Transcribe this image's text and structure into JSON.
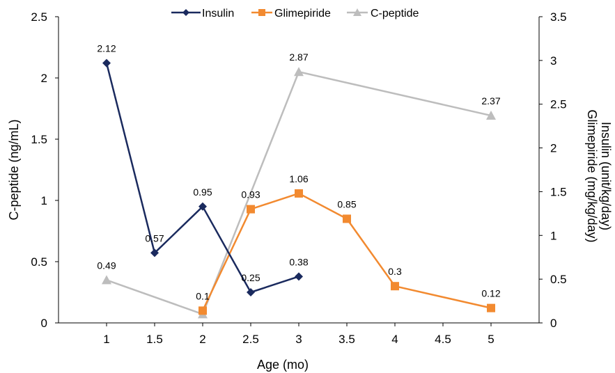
{
  "chart_data": {
    "type": "line",
    "xlabel": "Age (mo)",
    "ylabel_left": "C-peptide (ng/mL)",
    "ylabel_right_lines": [
      "Insulin (unit/kg/day)",
      "Glimepiride (mg/kg/day)"
    ],
    "xlim": [
      0.5,
      5.5
    ],
    "x_ticks": [
      1,
      1.5,
      2,
      2.5,
      3,
      3.5,
      4,
      4.5,
      5
    ],
    "x_tick_labels": [
      "1",
      "1.5",
      "2",
      "2.5",
      "3",
      "3.5",
      "4",
      "4.5",
      "5"
    ],
    "ylim_left": [
      0,
      2.5
    ],
    "y_left_ticks": [
      0,
      0.5,
      1,
      1.5,
      2,
      2.5
    ],
    "y_left_tick_labels": [
      "0",
      "0.5",
      "1",
      "1.5",
      "2",
      "2.5"
    ],
    "ylim_right": [
      0,
      3.5
    ],
    "y_right_ticks": [
      0,
      0.5,
      1,
      1.5,
      2,
      2.5,
      3,
      3.5
    ],
    "y_right_tick_labels": [
      "0",
      "0.5",
      "1",
      "1.5",
      "2",
      "2.5",
      "3",
      "3.5"
    ],
    "grid": false,
    "legend_position": "top",
    "series": [
      {
        "name": "Insulin",
        "axis": "right",
        "color": "#1a2a5e",
        "marker": "diamond",
        "x": [
          1,
          1.5,
          2,
          2.5,
          3
        ],
        "y": [
          2.97,
          0.8,
          1.33,
          0.35,
          0.53
        ],
        "labels": [
          "2.12",
          "0.57",
          "0.95",
          "0.25",
          "0.38"
        ]
      },
      {
        "name": "Glimepiride",
        "axis": "right",
        "color": "#f28a30",
        "marker": "square",
        "x": [
          2,
          2.5,
          3,
          3.5,
          4,
          5
        ],
        "y": [
          0.14,
          1.3,
          1.48,
          1.19,
          0.42,
          0.17
        ],
        "labels": [
          "0.1",
          "0.93",
          "1.06",
          "0.85",
          "0.3",
          "0.12"
        ]
      },
      {
        "name": "C-peptide",
        "axis": "right",
        "color": "#bdbdbd",
        "marker": "triangle",
        "x": [
          1,
          2,
          3,
          5
        ],
        "y": [
          0.49,
          0.1,
          2.87,
          2.37
        ],
        "labels": [
          "0.49",
          "",
          "2.87",
          "2.37"
        ]
      }
    ]
  }
}
